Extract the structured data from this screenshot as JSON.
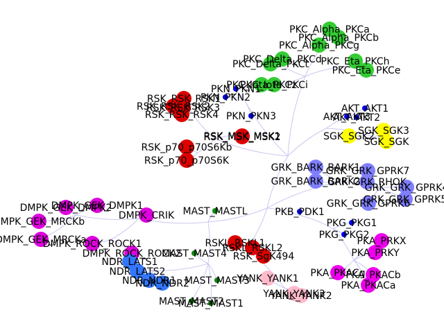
{
  "colors": {
    "AGC_PKC": "#33cc33",
    "AGC_RSK": "#dd0000",
    "AGC_AKT": "#0000ee",
    "AGC_SGK": "#ffff00",
    "AGC_GRK": "#7f7fff",
    "AGC_DMPK": "#dd00dd",
    "AGC_MAST": "#118811",
    "AGC_NDR": "#3377ff",
    "AGC_PKA": "#ee00ee",
    "AGC_YANK": "#ffbbcc",
    "edge": "#c8c8f0"
  },
  "nodes": [
    {
      "id": "pkc_alpha_pkca",
      "label": "PKC_Alpha_PKCa",
      "group": "AGC_PKC",
      "size": "large"
    },
    {
      "id": "pkc_alpha_pkcb",
      "label": "PKC_Alpha_PKCb",
      "group": "AGC_PKC",
      "size": "large"
    },
    {
      "id": "pkc_alpha_pkcg",
      "label": "PKC_Alpha_PKCg",
      "group": "AGC_PKC",
      "size": "large"
    },
    {
      "id": "pkc_delta_pkcd",
      "label": "PKC_Delta_PKCd",
      "group": "AGC_PKC",
      "size": "large"
    },
    {
      "id": "pkc_delta_pkct",
      "label": "PKC_Delta_PKCt",
      "group": "AGC_PKC",
      "size": "large"
    },
    {
      "id": "pkc_eta_pkch",
      "label": "PKC_Eta_PKCh",
      "group": "AGC_PKC",
      "size": "large"
    },
    {
      "id": "pkc_eta_pkce",
      "label": "PKC_Eta_PKCe",
      "group": "AGC_PKC",
      "size": "large"
    },
    {
      "id": "pkc_iota_pkci",
      "label": "PKC_Iota_PKCi",
      "group": "AGC_PKC",
      "size": "large"
    },
    {
      "id": "pkc_iota_pkcz",
      "label": "PKC_Iota_PKCz",
      "group": "AGC_PKC",
      "size": "large"
    },
    {
      "id": "pkn_pkn1",
      "label": "PKN_PKN1",
      "group": "AGC_AKT",
      "size": "small"
    },
    {
      "id": "pkn_pkn2",
      "label": "PKN_PKN2",
      "group": "AGC_AKT",
      "size": "small"
    },
    {
      "id": "pkn_pkn3",
      "label": "PKN_PKN3",
      "group": "AGC_AKT",
      "size": "small"
    },
    {
      "id": "rsk_rsk_rsk1",
      "label": "RSK_RSK_RSK1",
      "group": "AGC_RSK",
      "size": "large"
    },
    {
      "id": "rsk_rsk_rsk2",
      "label": "RSK_RSK_RSK2",
      "group": "AGC_RSK",
      "size": "large"
    },
    {
      "id": "rsk_rsk_rsk3",
      "label": "RSK_RSK_RSK3",
      "group": "AGC_RSK",
      "size": "large"
    },
    {
      "id": "rsk_rsk_rsk4",
      "label": "RSK_RSK_RSK4",
      "group": "AGC_RSK",
      "size": "large"
    },
    {
      "id": "rsk_msk_msk1",
      "label": "RSK_MSK_MSK1",
      "group": "AGC_RSK",
      "size": "large"
    },
    {
      "id": "rsk_msk_msk2",
      "label": "RSK_MSK_MSK2",
      "group": "AGC_RSK",
      "size": "large"
    },
    {
      "id": "rsk_p70_p70s6kb",
      "label": "RSK_p70_p70S6Kb",
      "group": "AGC_RSK",
      "size": "large"
    },
    {
      "id": "rsk_p70_p70s6k",
      "label": "RSK_p70_p70S6K",
      "group": "AGC_RSK",
      "size": "large"
    },
    {
      "id": "akt_akt1",
      "label": "AKT_AKT1",
      "group": "AGC_AKT",
      "size": "small"
    },
    {
      "id": "akt_akt2",
      "label": "AKT_AKT2",
      "group": "AGC_AKT",
      "size": "small"
    },
    {
      "id": "akt_akt3",
      "label": "AKT_AKT3",
      "group": "AGC_AKT",
      "size": "small"
    },
    {
      "id": "sgk_sgk3",
      "label": "SGK_SGK3",
      "group": "AGC_SGK",
      "size": "large"
    },
    {
      "id": "sgk_sgk2",
      "label": "SGK_SGK2",
      "group": "AGC_SGK",
      "size": "large"
    },
    {
      "id": "sgk_sgk",
      "label": "SGK_SGK",
      "group": "AGC_SGK",
      "size": "large"
    },
    {
      "id": "grk_bark_bark1",
      "label": "GRK_BARK_BARK1",
      "group": "AGC_GRK",
      "size": "large"
    },
    {
      "id": "grk_bark_bark2",
      "label": "GRK_BARK_BARK2",
      "group": "AGC_GRK",
      "size": "large"
    },
    {
      "id": "grk_grk_gprk7",
      "label": "GRK_GRK_GPRK7",
      "group": "AGC_GRK",
      "size": "large"
    },
    {
      "id": "grk_grk_rhok",
      "label": "GRK_GRK_RHOK",
      "group": "AGC_GRK",
      "size": "large"
    },
    {
      "id": "grk_grk_gprk4",
      "label": "GRK_GRK_GPRK4",
      "group": "AGC_GRK",
      "size": "large"
    },
    {
      "id": "grk_grk_gprk5",
      "label": "GRK_GRK_GPRK5",
      "group": "AGC_GRK",
      "size": "large"
    },
    {
      "id": "grk_grk_gprk6",
      "label": "GRK_GRK_GPRK6",
      "group": "AGC_GRK",
      "size": "large"
    },
    {
      "id": "dmpk_gek_dmpk2",
      "label": "DMPK_GEK_DMPK2",
      "group": "AGC_DMPK",
      "size": "large"
    },
    {
      "id": "dmpk_gek_dmpk1",
      "label": "DMPK_GEK_DMPK1",
      "group": "AGC_DMPK",
      "size": "large"
    },
    {
      "id": "dmpk_crik",
      "label": "DMPK_CRIK",
      "group": "AGC_DMPK",
      "size": "large"
    },
    {
      "id": "dmpk_gek_mrckb",
      "label": "DMPK_GEK_MRCKb",
      "group": "AGC_DMPK",
      "size": "large"
    },
    {
      "id": "dmpk_gek_mrcka",
      "label": "DMPK_GEK_MRCKa",
      "group": "AGC_DMPK",
      "size": "large"
    },
    {
      "id": "dmpk_rock_rock1",
      "label": "DMPK_ROCK_ROCK1",
      "group": "AGC_DMPK",
      "size": "large"
    },
    {
      "id": "dmpk_rock_rock2",
      "label": "DMPK_ROCK_ROCK2",
      "group": "AGC_DMPK",
      "size": "large"
    },
    {
      "id": "mast_mastl",
      "label": "MAST_MASTL",
      "group": "AGC_MAST",
      "size": "small"
    },
    {
      "id": "mast_mast4",
      "label": "MAST_MAST4",
      "group": "AGC_MAST",
      "size": "small"
    },
    {
      "id": "mast_mast3",
      "label": "MAST_MAST3",
      "group": "AGC_MAST",
      "size": "small"
    },
    {
      "id": "mast_mast2",
      "label": "MAST_MAST2",
      "group": "AGC_MAST",
      "size": "small"
    },
    {
      "id": "mast_mast1",
      "label": "MAST_MAST1",
      "group": "AGC_MAST",
      "size": "small"
    },
    {
      "id": "ndr_lats1",
      "label": "NDR_LATS1",
      "group": "AGC_NDR",
      "size": "large"
    },
    {
      "id": "ndr_lats2",
      "label": "NDR_LATS2",
      "group": "AGC_NDR",
      "size": "large"
    },
    {
      "id": "ndr_ndr1",
      "label": "NDR_NDR1",
      "group": "AGC_NDR",
      "size": "large"
    },
    {
      "id": "ndr_ndr2",
      "label": "NDR_NDR2",
      "group": "AGC_NDR",
      "size": "large"
    },
    {
      "id": "rsk_sgk494",
      "label": "RSK_SgK494",
      "group": "AGC_RSK",
      "size": "large"
    },
    {
      "id": "rskl_rskl1",
      "label": "RSKL_RSKL1",
      "group": "AGC_RSK",
      "size": "large"
    },
    {
      "id": "rskl_rskl2",
      "label": "RSKL_RSKL2",
      "group": "AGC_RSK",
      "size": "large"
    },
    {
      "id": "pkb_pdk1",
      "label": "PKB_PDK1",
      "group": "AGC_AKT",
      "size": "small"
    },
    {
      "id": "pkg_pkg1",
      "label": "PKG_PKG1",
      "group": "AGC_AKT",
      "size": "small"
    },
    {
      "id": "pkg_pkg2",
      "label": "PKG_PKG2",
      "group": "AGC_AKT",
      "size": "small"
    },
    {
      "id": "pka_prkx",
      "label": "PKA_PRKX",
      "group": "AGC_PKA",
      "size": "large"
    },
    {
      "id": "pka_prky",
      "label": "PKA_PRKY",
      "group": "AGC_PKA",
      "size": "large"
    },
    {
      "id": "pka_pkacg",
      "label": "PKA_PKACg",
      "group": "AGC_PKA",
      "size": "large"
    },
    {
      "id": "pka_pkacb",
      "label": "PKA_PKACb",
      "group": "AGC_PKA",
      "size": "large"
    },
    {
      "id": "pka_pkaca",
      "label": "PKA_PKACa",
      "group": "AGC_PKA",
      "size": "large"
    },
    {
      "id": "yank_yank1",
      "label": "YANK_YANK1",
      "group": "AGC_YANK",
      "size": "large"
    },
    {
      "id": "yank_yank2",
      "label": "YANK_YANK2",
      "group": "AGC_YANK",
      "size": "large"
    },
    {
      "id": "yank_yank3",
      "label": "YANK_YANK3",
      "group": "AGC_YANK",
      "size": "large"
    }
  ]
}
